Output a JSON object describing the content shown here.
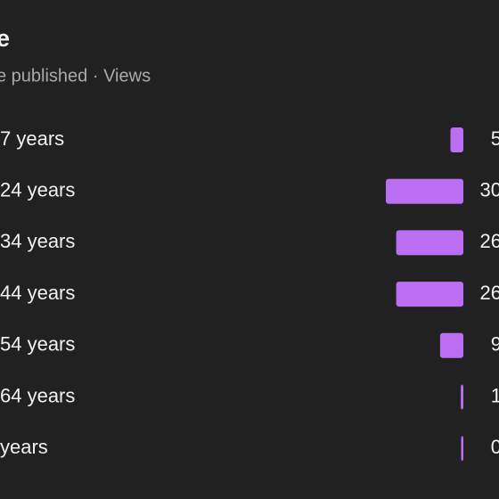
{
  "chart_data": {
    "type": "bar",
    "orientation": "horizontal",
    "title": "e",
    "subtitle": "e published · Views",
    "categories": [
      "7 years",
      "24 years",
      "34 years",
      "44 years",
      "54 years",
      "64 years",
      "years"
    ],
    "values": [
      5,
      30,
      26,
      26,
      9,
      1,
      0
    ],
    "color": "#bb6ef2",
    "xlim": [
      0,
      30
    ]
  }
}
